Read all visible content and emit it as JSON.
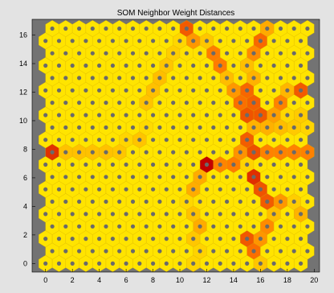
{
  "chart_data": {
    "type": "heatmap",
    "title": "SOM Neighbor Weight Distances",
    "xlabel": "",
    "ylabel": "",
    "xlim": [
      -1,
      20.4
    ],
    "ylim": [
      -0.6,
      17.1
    ],
    "xticks": [
      0,
      2,
      4,
      6,
      8,
      10,
      12,
      14,
      16,
      18,
      20
    ],
    "yticks": [
      0,
      2,
      4,
      6,
      8,
      10,
      12,
      14,
      16
    ],
    "grid": {
      "topology": "hexagonal",
      "columns": 20,
      "rows": 20,
      "row_spacing": 0.866,
      "odd_row_offset": 0.5
    },
    "colors": {
      "background": "#737373",
      "near": "#ffe400",
      "mid": "#ff7a00",
      "far": "#cc0000",
      "max": "#000000",
      "neuron": "#6a6a6a"
    },
    "distance_ridges": [
      {
        "points": [
          [
            10.5,
            16.4
          ],
          [
            13.8,
            13.3
          ],
          [
            15.2,
            9.8
          ],
          [
            14.6,
            7.2
          ],
          [
            13.8,
            6.6
          ],
          [
            12.2,
            6.9
          ]
        ],
        "level": 0.6
      },
      {
        "points": [
          [
            14.5,
            8.4
          ],
          [
            16.0,
            7.6
          ],
          [
            19.5,
            7.6
          ]
        ],
        "level": 0.65
      },
      {
        "points": [
          [
            15.3,
            6.4
          ],
          [
            16.2,
            5.1
          ],
          [
            16.8,
            2.4
          ],
          [
            15.0,
            1.6
          ],
          [
            15.6,
            0.2
          ]
        ],
        "level": 0.7
      },
      {
        "points": [
          [
            16.2,
            16.4
          ],
          [
            14.9,
            12.2
          ],
          [
            16.3,
            9.9
          ],
          [
            17.6,
            11.6
          ],
          [
            19.5,
            12.3
          ]
        ],
        "level": 0.55
      },
      {
        "points": [
          [
            16.3,
            9.8
          ],
          [
            19.5,
            10.0
          ]
        ],
        "level": 0.45
      },
      {
        "points": [
          [
            12.0,
            6.9
          ],
          [
            10.8,
            4.8
          ],
          [
            11.5,
            2.7
          ],
          [
            11.0,
            0.4
          ]
        ],
        "level": 0.25
      },
      {
        "points": [
          [
            10.7,
            15.9
          ],
          [
            8.5,
            12.8
          ],
          [
            7.5,
            10.9
          ]
        ],
        "level": 0.2
      },
      {
        "points": [
          [
            7.5,
            9.1
          ],
          [
            5.0,
            7.7
          ],
          [
            3.0,
            7.7
          ],
          [
            0.7,
            7.7
          ]
        ],
        "level": 0.18
      },
      {
        "points": [
          [
            17.0,
            4.5
          ],
          [
            19.5,
            3.5
          ]
        ],
        "level": 0.35
      }
    ],
    "distance_peaks": [
      {
        "x": 0.5,
        "y": 8.0,
        "value": 1.0,
        "radius": 0.6
      },
      {
        "x": 11.9,
        "y": 6.9,
        "value": 0.95,
        "radius": 0.7
      },
      {
        "x": 12.4,
        "y": 7.3,
        "value": 0.85,
        "radius": 0.5
      },
      {
        "x": 15.5,
        "y": 1.5,
        "value": 0.8,
        "radius": 0.6
      },
      {
        "x": 16.0,
        "y": 15.8,
        "value": 0.75,
        "radius": 0.6
      },
      {
        "x": 14.3,
        "y": 6.6,
        "value": 0.8,
        "radius": 0.5
      }
    ]
  }
}
